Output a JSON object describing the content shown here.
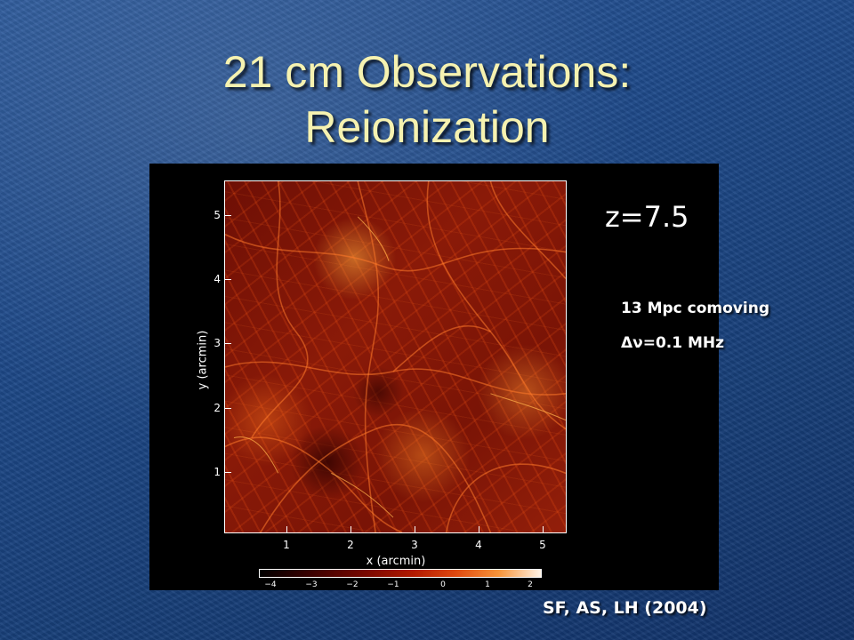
{
  "slide": {
    "title_line1": "21 cm Observations:",
    "title_line2": "Reionization"
  },
  "figure": {
    "redshift_label": "z=7.5",
    "x_axis_label": "x (arcmin)",
    "y_axis_label": "y (arcmin)",
    "x_ticks": [
      "1",
      "2",
      "3",
      "4",
      "5"
    ],
    "y_ticks": [
      "1",
      "2",
      "3",
      "4",
      "5"
    ],
    "colorbar_ticks": [
      "−4",
      "−3",
      "−2",
      "−1",
      "0",
      "1",
      "2"
    ],
    "colormap": [
      "#000000",
      "#7a0800",
      "#e04a10",
      "#fff3e6"
    ]
  },
  "notes": {
    "scale": "13 Mpc comoving",
    "bandwidth": "Δν=0.1 MHz"
  },
  "credit": "SF, AS, LH (2004)"
}
